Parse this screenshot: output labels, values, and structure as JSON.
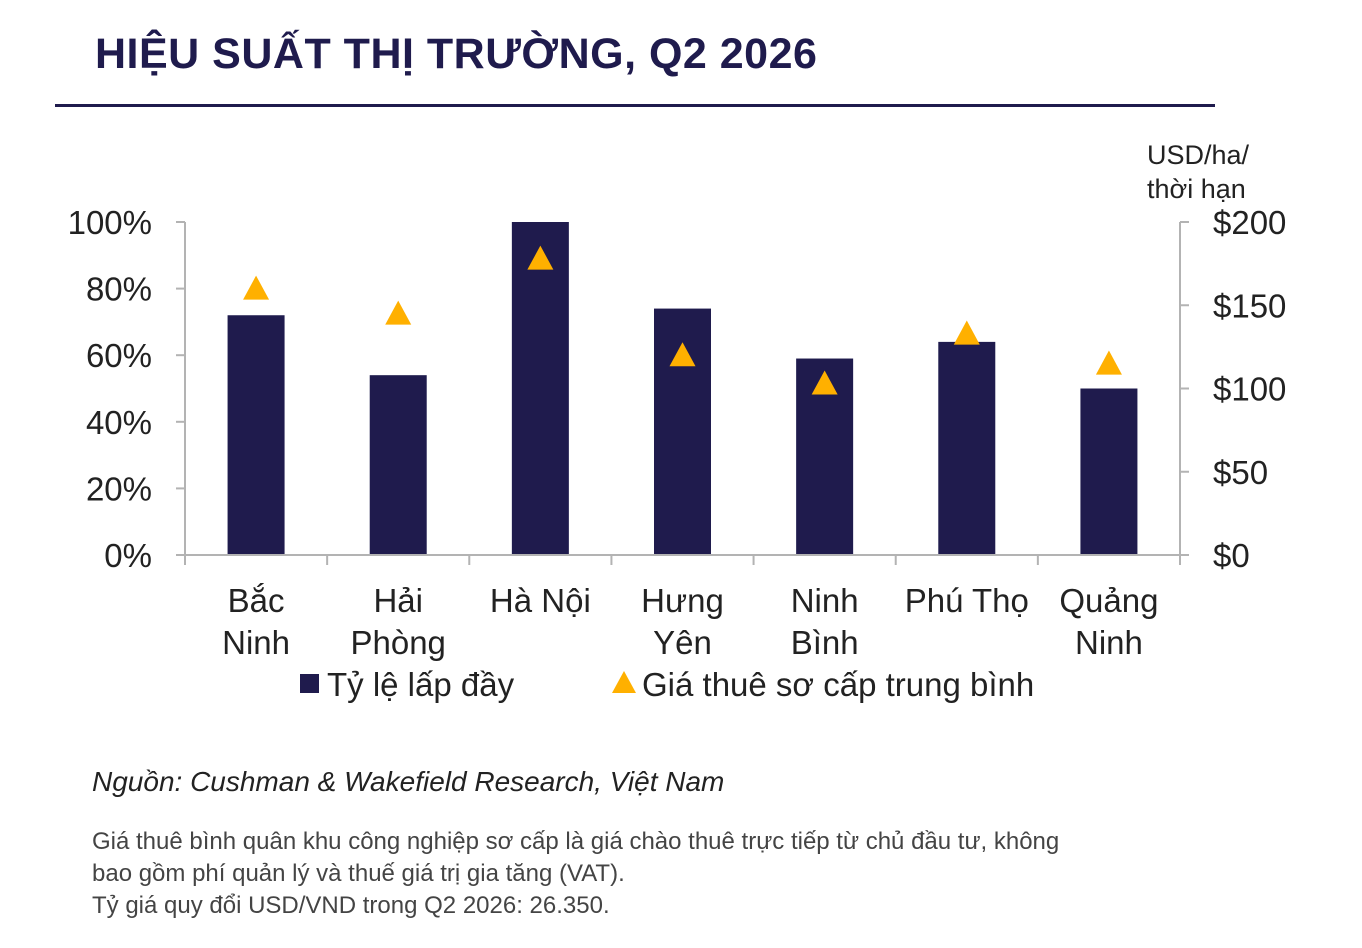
{
  "title": "HIỆU SUẤT THỊ TRƯỜNG, Q2 2026",
  "chart_data": {
    "type": "bar",
    "categories": [
      [
        "Bắc",
        "Ninh"
      ],
      [
        "Hải",
        "Phòng"
      ],
      [
        "Hà Nội"
      ],
      [
        "Hưng",
        "Yên"
      ],
      [
        "Ninh",
        "Bình"
      ],
      [
        "Phú Thọ"
      ],
      [
        "Quảng",
        "Ninh"
      ]
    ],
    "series": [
      {
        "name": "Tỷ lệ lấp đầy",
        "type": "bar",
        "axis": "left",
        "color": "#1f1b4d",
        "values": [
          72,
          54,
          100,
          74,
          59,
          64,
          50
        ]
      },
      {
        "name": "Giá thuê sơ cấp trung bình",
        "type": "scatter",
        "marker": "triangle",
        "axis": "right",
        "color": "#ffb000",
        "values": [
          160,
          145,
          178,
          120,
          103,
          133,
          115
        ]
      }
    ],
    "y_left": {
      "ylim": [
        0,
        100
      ],
      "ticks": [
        0,
        20,
        40,
        60,
        80,
        100
      ],
      "tick_labels": [
        "0%",
        "20%",
        "40%",
        "60%",
        "80%",
        "100%"
      ]
    },
    "y_right": {
      "ylabel": [
        "USD/ha/",
        "thời hạn"
      ],
      "ylim": [
        0,
        200
      ],
      "ticks": [
        0,
        50,
        100,
        150,
        200
      ],
      "tick_labels": [
        "$0",
        "$50",
        "$100",
        "$150",
        "$200"
      ]
    },
    "grid": false,
    "legend_position": "bottom"
  },
  "source": "Nguồn: Cushman & Wakefield Research, Việt Nam",
  "notes": [
    "Giá thuê bình quân khu công nghiệp sơ cấp là giá chào thuê trực tiếp từ chủ đầu tư, không",
    "bao gồm phí quản lý và thuế giá trị gia tăng (VAT).",
    "Tỷ giá quy đổi USD/VND trong Q2 2026: 26.350."
  ]
}
